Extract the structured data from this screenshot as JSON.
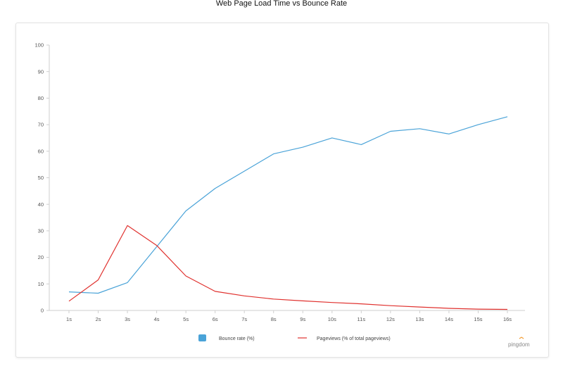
{
  "chart_data": {
    "type": "line",
    "title": "Web Page Load Time vs Bounce Rate",
    "categories": [
      "1s",
      "2s",
      "3s",
      "4s",
      "5s",
      "6s",
      "7s",
      "8s",
      "9s",
      "10s",
      "11s",
      "12s",
      "13s",
      "14s",
      "15s",
      "16s"
    ],
    "ylim": [
      0,
      100
    ],
    "yticks": [
      0,
      10,
      20,
      30,
      40,
      50,
      60,
      70,
      80,
      90,
      100
    ],
    "grid": false,
    "legend_position": "bottom",
    "series": [
      {
        "name": "Bounce rate  (%)",
        "color": "#4aa3d8",
        "legend_marker": "square",
        "values": [
          7,
          6.5,
          10.5,
          24,
          37.5,
          46,
          52.5,
          59,
          61.5,
          65,
          62.5,
          67.5,
          68.5,
          66.5,
          70,
          73
        ]
      },
      {
        "name": "Pageviews (% of total pageviews)",
        "color": "#e0312e",
        "legend_marker": "line",
        "values": [
          3.5,
          11.5,
          32,
          24.5,
          13,
          7.2,
          5.5,
          4.3,
          3.6,
          3,
          2.5,
          1.8,
          1.3,
          0.8,
          0.5,
          0.4
        ]
      }
    ]
  },
  "brand": {
    "logo_text": "pingdom",
    "accent_color": "#f39a2b"
  }
}
